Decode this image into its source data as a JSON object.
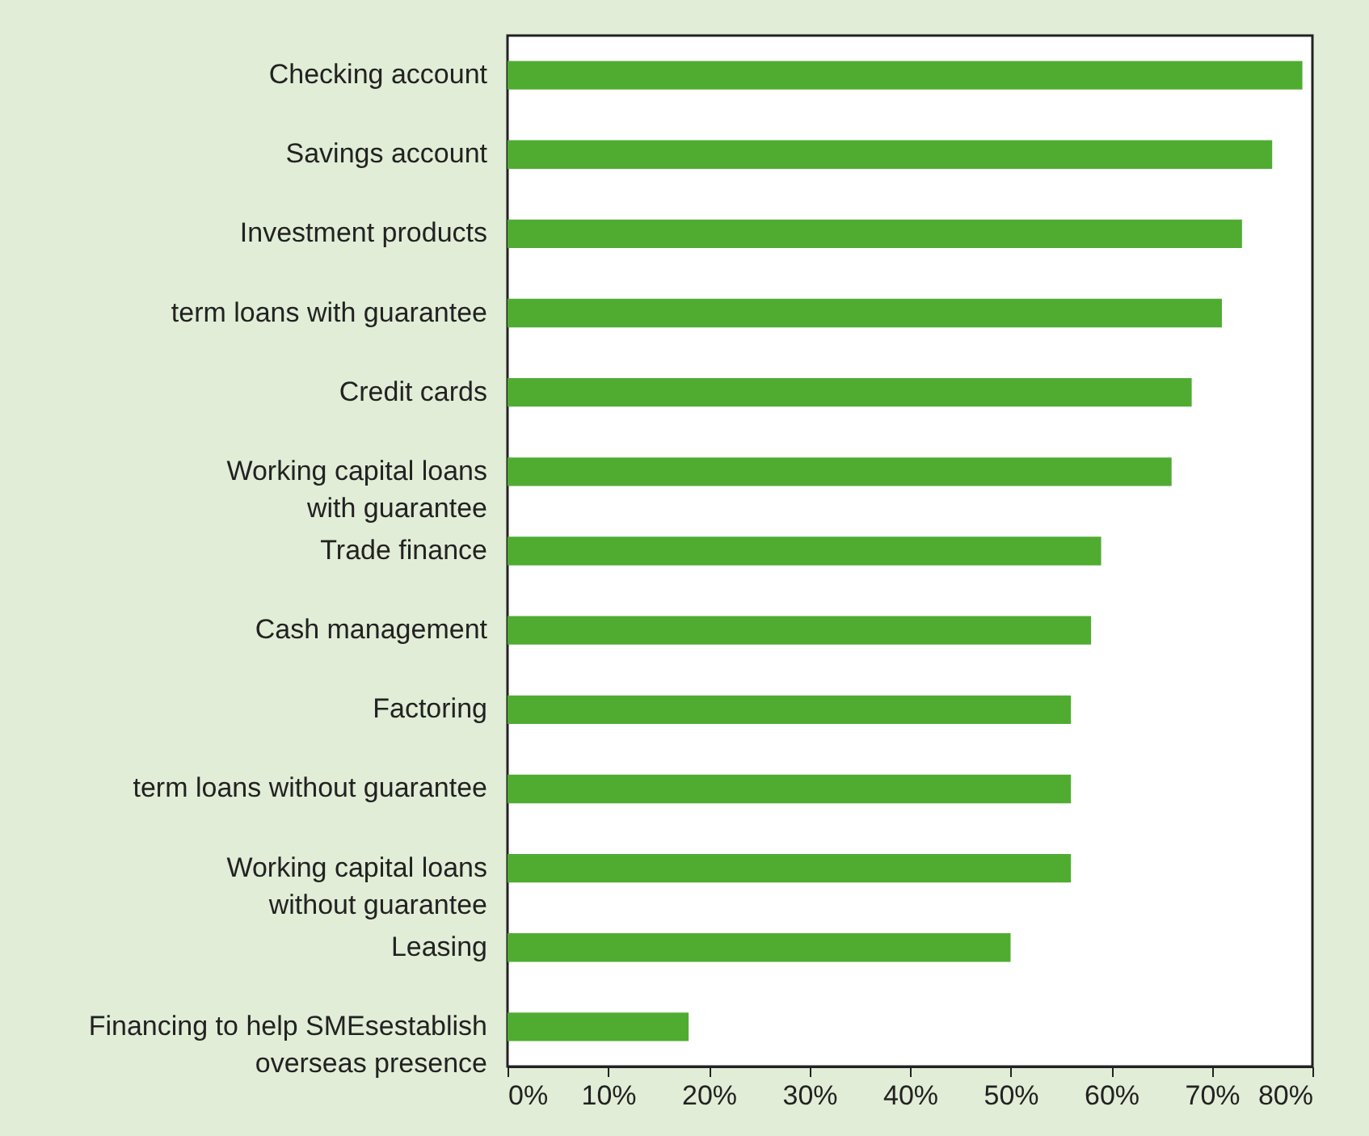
{
  "chart_data": {
    "type": "bar",
    "orientation": "horizontal",
    "categories": [
      "Checking account",
      "Savings account",
      "Investment products",
      "term loans with guarantee",
      "Credit cards",
      "Working capital loans\nwith guarantee",
      "Trade finance",
      "Cash management",
      "Factoring",
      "term loans without guarantee",
      "Working capital loans\nwithout guarantee",
      "Leasing",
      "Financing to help SMEsestablish\noverseas presence"
    ],
    "values": [
      79,
      76,
      73,
      71,
      68,
      66,
      59,
      58,
      56,
      56,
      56,
      50,
      18
    ],
    "color": "#4fac31",
    "xlim": [
      0,
      80
    ],
    "xticks": [
      {
        "value": 0,
        "label": "0%"
      },
      {
        "value": 10,
        "label": "10%"
      },
      {
        "value": 20,
        "label": "20%"
      },
      {
        "value": 30,
        "label": "30%"
      },
      {
        "value": 40,
        "label": "40%"
      },
      {
        "value": 50,
        "label": "50%"
      },
      {
        "value": 60,
        "label": "60%"
      },
      {
        "value": 70,
        "label": "70%"
      },
      {
        "value": 80,
        "label": "80%"
      }
    ],
    "grid": false
  }
}
